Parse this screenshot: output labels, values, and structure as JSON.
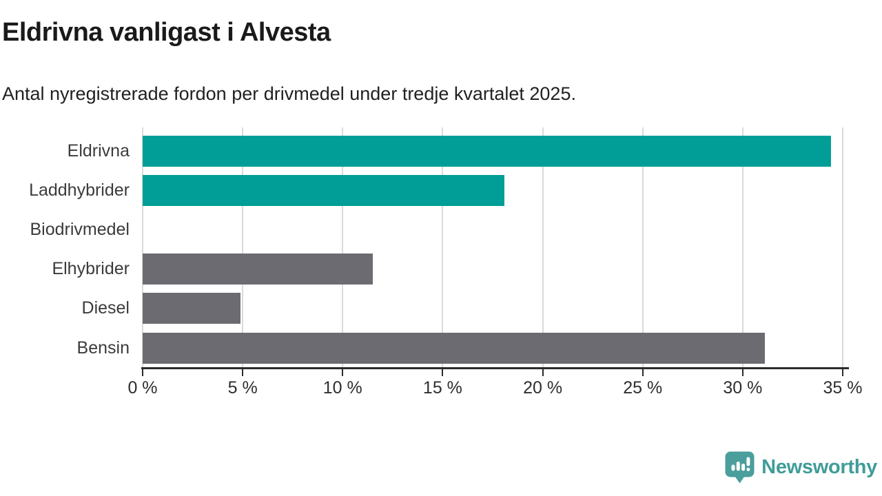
{
  "chart_data": {
    "type": "bar",
    "orientation": "horizontal",
    "title": "Eldrivna vanligast i Alvesta",
    "subtitle": "Antal nyregistrerade fordon per drivmedel under tredje kvartalet 2025.",
    "categories": [
      "Eldrivna",
      "Laddhybrider",
      "Biodrivmedel",
      "Elhybrider",
      "Diesel",
      "Bensin"
    ],
    "values": [
      34.4,
      18.1,
      0,
      11.5,
      4.9,
      31.1
    ],
    "bar_colors": [
      "#009e96",
      "#009e96",
      "#009e96",
      "#6c6b71",
      "#6c6b71",
      "#6c6b71"
    ],
    "xlabel": "",
    "ylabel": "",
    "xlim": [
      0,
      35
    ],
    "x_tick_values": [
      0,
      5,
      10,
      15,
      20,
      25,
      30,
      35
    ],
    "x_tick_labels": [
      "0 %",
      "5 %",
      "10 %",
      "15 %",
      "20 %",
      "25 %",
      "30 %",
      "35 %"
    ],
    "grid": true,
    "legend": false
  },
  "colors": {
    "accent_teal": "#009e96",
    "neutral_gray": "#6c6b71",
    "gridline": "#dadada",
    "axis": "#2b2b2b",
    "logo_teal": "#3f9c99"
  },
  "footer": {
    "brand": "Newsworthy",
    "logo_icon": "bar-chart-speech-bubble-icon"
  }
}
